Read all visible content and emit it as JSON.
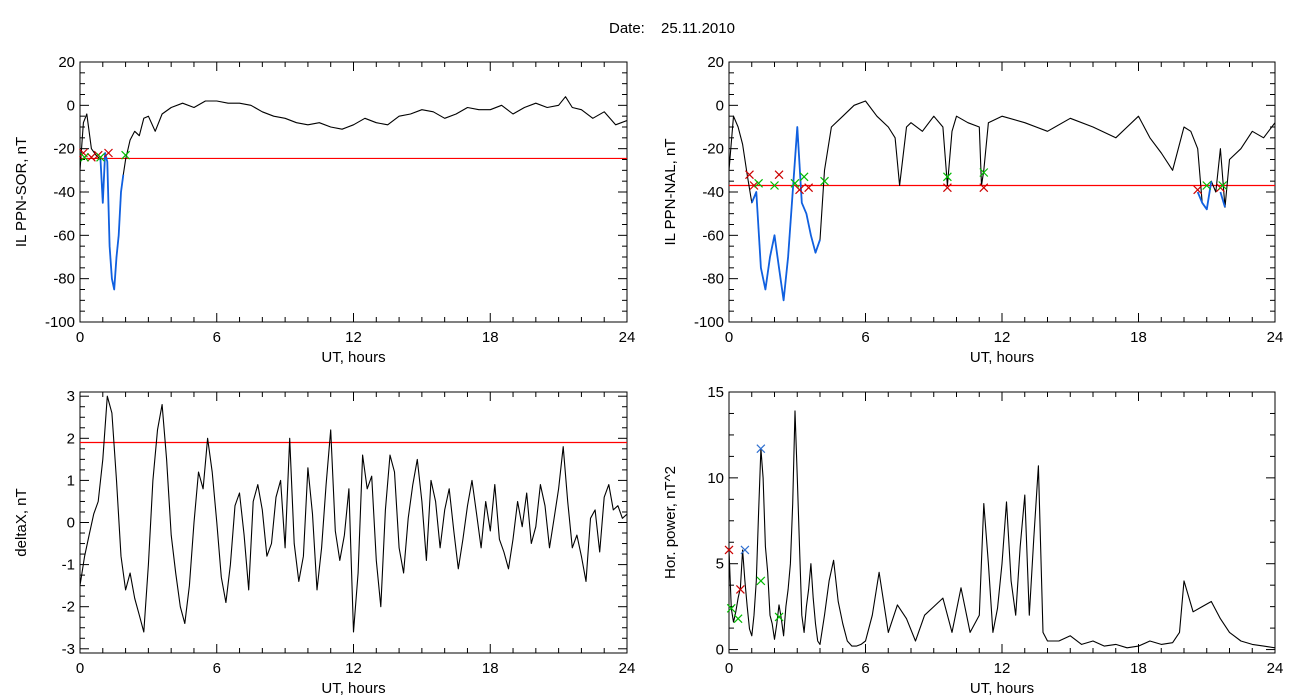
{
  "figure": {
    "date_label": "Date:",
    "date_value": "25.11.2010"
  },
  "chart_data": [
    {
      "type": "line",
      "ylabel": "IL PPN-SOR, nT",
      "xlabel": "UT, hours",
      "xlim": [
        0,
        24
      ],
      "ylim": [
        -100,
        20
      ],
      "xticks": [
        0,
        6,
        12,
        18,
        24
      ],
      "yticks": [
        -100,
        -80,
        -60,
        -40,
        -20,
        0,
        20
      ],
      "threshold": {
        "value": -24.5,
        "color": "#ff0000"
      },
      "series": [
        {
          "role": "signal",
          "color": "#000000",
          "x": [
            0,
            0.15,
            0.3,
            0.5,
            0.7,
            0.9,
            1.0,
            1.1,
            1.2,
            1.3,
            1.4,
            1.5,
            1.6,
            1.7,
            1.8,
            1.9,
            2.0,
            2.2,
            2.4,
            2.6,
            2.8,
            3.0,
            3.3,
            3.6,
            4.0,
            4.5,
            5,
            5.5,
            6,
            6.5,
            7,
            7.5,
            8,
            8.5,
            9,
            9.5,
            10,
            10.5,
            11,
            11.5,
            12,
            12.5,
            13,
            13.5,
            14,
            14.5,
            15,
            15.5,
            16,
            16.5,
            17,
            17.5,
            18,
            18.5,
            19,
            19.5,
            20,
            20.5,
            21,
            21.3,
            21.6,
            22,
            22.5,
            23,
            23.5,
            24
          ],
          "y": [
            -30,
            -8,
            -4,
            -20,
            -23,
            -25,
            -45,
            -22,
            -26,
            -65,
            -80,
            -85,
            -70,
            -60,
            -40,
            -32,
            -25,
            -16,
            -12,
            -14,
            -6,
            -5,
            -12,
            -4,
            -1,
            1,
            -1,
            2,
            2,
            1,
            1,
            0,
            -3,
            -5,
            -6,
            -8,
            -9,
            -8,
            -10,
            -11,
            -9,
            -6,
            -8,
            -9,
            -5,
            -4,
            -2,
            -3,
            -6,
            -4,
            -1,
            -2,
            -2,
            0,
            -4,
            -1,
            1,
            -1,
            0,
            4,
            -1,
            -2,
            -6,
            -3,
            -9,
            -7
          ]
        },
        {
          "role": "event",
          "color": "#1060e0",
          "x": [
            0.9,
            1.0,
            1.1,
            1.2,
            1.3,
            1.4,
            1.5,
            1.6,
            1.7,
            1.8,
            1.9
          ],
          "y": [
            -25,
            -45,
            -22,
            -26,
            -65,
            -80,
            -85,
            -70,
            -60,
            -40,
            -32
          ]
        }
      ],
      "markers": [
        {
          "x": 0.15,
          "y": -22,
          "color": "#cc0000"
        },
        {
          "x": 0.5,
          "y": -24,
          "color": "#cc0000"
        },
        {
          "x": 0.8,
          "y": -23,
          "color": "#cc0000"
        },
        {
          "x": 1.25,
          "y": -22,
          "color": "#cc0000"
        },
        {
          "x": 0.2,
          "y": -24,
          "color": "#00bb00"
        },
        {
          "x": 0.9,
          "y": -24,
          "color": "#00bb00"
        },
        {
          "x": 2.0,
          "y": -23,
          "color": "#00bb00"
        }
      ]
    },
    {
      "type": "line",
      "ylabel": "IL PPN-NAL, nT",
      "xlabel": "UT, hours",
      "xlim": [
        0,
        24
      ],
      "ylim": [
        -100,
        20
      ],
      "xticks": [
        0,
        6,
        12,
        18,
        24
      ],
      "yticks": [
        -100,
        -80,
        -60,
        -40,
        -20,
        0,
        20
      ],
      "threshold": {
        "value": -37,
        "color": "#ff0000"
      },
      "series": [
        {
          "role": "signal",
          "color": "#000000",
          "x": [
            0,
            0.2,
            0.4,
            0.6,
            0.8,
            1.0,
            1.2,
            1.4,
            1.6,
            1.8,
            2.0,
            2.2,
            2.4,
            2.6,
            2.8,
            3.0,
            3.2,
            3.4,
            3.6,
            3.8,
            4.0,
            4.2,
            4.5,
            5.0,
            5.5,
            6,
            6.5,
            7,
            7.3,
            7.5,
            7.8,
            8,
            8.5,
            9,
            9.4,
            9.6,
            9.8,
            10,
            10.5,
            11,
            11.1,
            11.2,
            11.4,
            12,
            13,
            14,
            15,
            16,
            17,
            18,
            18.5,
            19,
            19.5,
            20,
            20.3,
            20.6,
            20.8,
            21,
            21.2,
            21.4,
            21.6,
            21.8,
            22,
            22.5,
            23,
            23.5,
            24
          ],
          "y": [
            -30,
            -5,
            -10,
            -18,
            -32,
            -45,
            -40,
            -75,
            -85,
            -70,
            -60,
            -75,
            -90,
            -70,
            -40,
            -10,
            -45,
            -50,
            -60,
            -68,
            -62,
            -30,
            -10,
            -5,
            0,
            2,
            -5,
            -10,
            -15,
            -37,
            -10,
            -8,
            -12,
            -5,
            -10,
            -37,
            -12,
            -5,
            -8,
            -10,
            -37,
            -30,
            -8,
            -5,
            -8,
            -12,
            -6,
            -10,
            -15,
            -5,
            -15,
            -22,
            -30,
            -10,
            -12,
            -20,
            -45,
            -48,
            -35,
            -40,
            -20,
            -47,
            -25,
            -20,
            -12,
            -15,
            -8
          ]
        },
        {
          "role": "event",
          "color": "#1060e0",
          "x": [
            1.0,
            1.2,
            1.4,
            1.6,
            1.8,
            2.0,
            2.2,
            2.4,
            2.6,
            2.8,
            3.0,
            3.2,
            3.4,
            3.6,
            3.8,
            4.0
          ],
          "y": [
            -45,
            -40,
            -75,
            -85,
            -70,
            -60,
            -75,
            -90,
            -70,
            -40,
            -10,
            -45,
            -50,
            -60,
            -68,
            -62
          ]
        },
        {
          "role": "event",
          "color": "#1060e0",
          "x": [
            20.6,
            20.8,
            21.0,
            21.2
          ],
          "y": [
            -40,
            -45,
            -48,
            -35
          ]
        },
        {
          "role": "event",
          "color": "#1060e0",
          "x": [
            21.6,
            21.8
          ],
          "y": [
            -40,
            -47
          ]
        }
      ],
      "markers": [
        {
          "x": 0.9,
          "y": -32,
          "color": "#cc0000"
        },
        {
          "x": 1.1,
          "y": -37,
          "color": "#cc0000"
        },
        {
          "x": 2.2,
          "y": -32,
          "color": "#cc0000"
        },
        {
          "x": 3.1,
          "y": -39,
          "color": "#cc0000"
        },
        {
          "x": 3.5,
          "y": -38,
          "color": "#cc0000"
        },
        {
          "x": 9.6,
          "y": -38,
          "color": "#cc0000"
        },
        {
          "x": 11.2,
          "y": -38,
          "color": "#cc0000"
        },
        {
          "x": 20.6,
          "y": -39,
          "color": "#cc0000"
        },
        {
          "x": 21.6,
          "y": -38,
          "color": "#cc0000"
        },
        {
          "x": 1.3,
          "y": -36,
          "color": "#00bb00"
        },
        {
          "x": 2.0,
          "y": -37,
          "color": "#00bb00"
        },
        {
          "x": 2.9,
          "y": -36,
          "color": "#00bb00"
        },
        {
          "x": 3.3,
          "y": -33,
          "color": "#00bb00"
        },
        {
          "x": 4.2,
          "y": -35,
          "color": "#00bb00"
        },
        {
          "x": 9.6,
          "y": -33,
          "color": "#00bb00"
        },
        {
          "x": 11.2,
          "y": -31,
          "color": "#00bb00"
        },
        {
          "x": 21.0,
          "y": -37,
          "color": "#00bb00"
        },
        {
          "x": 21.7,
          "y": -37,
          "color": "#00bb00"
        }
      ]
    },
    {
      "type": "line",
      "ylabel": "deltaX, nT",
      "xlabel": "UT, hours",
      "xlim": [
        0,
        24
      ],
      "ylim": [
        -3.1,
        3.1
      ],
      "xticks": [
        0,
        6,
        12,
        18,
        24
      ],
      "yticks": [
        -3,
        -2,
        -1,
        0,
        1,
        2,
        3
      ],
      "threshold": {
        "value": 1.9,
        "color": "#ff0000"
      },
      "series": [
        {
          "role": "signal",
          "color": "#000000",
          "x": [
            0,
            0.2,
            0.4,
            0.6,
            0.8,
            1.0,
            1.2,
            1.4,
            1.6,
            1.8,
            2.0,
            2.2,
            2.4,
            2.6,
            2.8,
            3.0,
            3.2,
            3.4,
            3.6,
            3.8,
            4.0,
            4.2,
            4.4,
            4.6,
            4.8,
            5.0,
            5.2,
            5.4,
            5.6,
            5.8,
            6.0,
            6.2,
            6.4,
            6.6,
            6.8,
            7.0,
            7.2,
            7.4,
            7.6,
            7.8,
            8.0,
            8.2,
            8.4,
            8.6,
            8.8,
            9.0,
            9.2,
            9.4,
            9.6,
            9.8,
            10.0,
            10.2,
            10.4,
            10.6,
            10.8,
            11.0,
            11.2,
            11.4,
            11.6,
            11.8,
            12.0,
            12.2,
            12.4,
            12.6,
            12.8,
            13.0,
            13.2,
            13.4,
            13.6,
            13.8,
            14.0,
            14.2,
            14.4,
            14.6,
            14.8,
            15.0,
            15.2,
            15.4,
            15.6,
            15.8,
            16.0,
            16.2,
            16.4,
            16.6,
            16.8,
            17.0,
            17.2,
            17.4,
            17.6,
            17.8,
            18.0,
            18.2,
            18.4,
            18.6,
            18.8,
            19.0,
            19.2,
            19.4,
            19.6,
            19.8,
            20.0,
            20.2,
            20.4,
            20.6,
            20.8,
            21.0,
            21.2,
            21.4,
            21.6,
            21.8,
            22.0,
            22.2,
            22.4,
            22.6,
            22.8,
            23.0,
            23.2,
            23.4,
            23.6,
            23.8,
            24.0
          ],
          "y": [
            -1.5,
            -0.8,
            -0.3,
            0.2,
            0.5,
            1.5,
            3.0,
            2.6,
            1.0,
            -0.8,
            -1.6,
            -1.2,
            -1.8,
            -2.2,
            -2.6,
            -1.0,
            1.0,
            2.2,
            2.8,
            1.5,
            -0.3,
            -1.2,
            -2.0,
            -2.4,
            -1.5,
            0.0,
            1.2,
            0.8,
            2.0,
            1.2,
            0.0,
            -1.3,
            -1.9,
            -1.0,
            0.4,
            0.7,
            -0.3,
            -1.6,
            0.5,
            0.9,
            0.3,
            -0.8,
            -0.5,
            0.6,
            1.0,
            -0.6,
            2.0,
            -0.5,
            -1.4,
            -0.8,
            1.3,
            0.2,
            -1.6,
            -0.6,
            0.9,
            2.2,
            -0.2,
            -0.9,
            -0.3,
            0.8,
            -2.6,
            -1.2,
            1.6,
            0.8,
            1.1,
            -0.9,
            -2.0,
            0.3,
            1.6,
            1.2,
            -0.6,
            -1.2,
            0.1,
            0.9,
            1.5,
            0.5,
            -0.9,
            1.0,
            0.5,
            -0.6,
            0.3,
            0.8,
            -0.2,
            -1.1,
            -0.4,
            0.4,
            1.0,
            0.2,
            -0.6,
            0.5,
            -0.2,
            0.9,
            -0.4,
            -0.7,
            -1.1,
            -0.4,
            0.5,
            -0.1,
            0.7,
            -0.5,
            -0.1,
            0.9,
            0.4,
            -0.6,
            0.1,
            0.8,
            1.8,
            0.5,
            -0.6,
            -0.3,
            -0.8,
            -1.4,
            0.1,
            0.3,
            -0.7,
            0.6,
            0.9,
            0.3,
            0.4,
            0.1,
            0.2
          ]
        }
      ],
      "markers": []
    },
    {
      "type": "line",
      "ylabel": "Hor. power, nT^2",
      "xlabel": "UT, hours",
      "xlim": [
        0,
        24
      ],
      "ylim": [
        -0.2,
        15
      ],
      "xticks": [
        0,
        6,
        12,
        18,
        24
      ],
      "yticks": [
        0,
        5,
        10,
        15
      ],
      "series": [
        {
          "role": "signal",
          "color": "#000000",
          "x": [
            0,
            0.1,
            0.2,
            0.3,
            0.4,
            0.5,
            0.6,
            0.7,
            0.8,
            0.9,
            1.0,
            1.1,
            1.2,
            1.3,
            1.4,
            1.5,
            1.6,
            1.7,
            1.8,
            1.9,
            2.0,
            2.1,
            2.2,
            2.3,
            2.4,
            2.5,
            2.6,
            2.7,
            2.8,
            2.9,
            3.0,
            3.1,
            3.2,
            3.3,
            3.4,
            3.5,
            3.6,
            3.7,
            3.8,
            3.9,
            4.0,
            4.2,
            4.4,
            4.6,
            4.8,
            5.0,
            5.2,
            5.4,
            5.6,
            5.8,
            6.0,
            6.3,
            6.6,
            7.0,
            7.4,
            7.8,
            8.2,
            8.6,
            9.0,
            9.4,
            9.8,
            10.2,
            10.6,
            11.0,
            11.2,
            11.4,
            11.6,
            11.8,
            12.0,
            12.2,
            12.4,
            12.6,
            12.8,
            13.0,
            13.2,
            13.4,
            13.6,
            13.8,
            14.0,
            14.5,
            15,
            15.5,
            16,
            16.5,
            17,
            17.5,
            18,
            18.5,
            19,
            19.5,
            19.8,
            20.0,
            20.4,
            20.8,
            21.2,
            21.6,
            22,
            22.5,
            23,
            23.5,
            24
          ],
          "y": [
            5.8,
            2.4,
            1.6,
            2.2,
            3.0,
            3.6,
            5.8,
            4.0,
            2.5,
            1.2,
            0.8,
            2.0,
            4.0,
            8.0,
            11.7,
            10.0,
            6.0,
            4.5,
            2.0,
            1.5,
            0.6,
            1.5,
            2.6,
            1.8,
            0.8,
            2.5,
            3.5,
            5.0,
            8.5,
            13.9,
            10.0,
            6.0,
            2.0,
            1.0,
            2.5,
            3.5,
            5.0,
            3.0,
            1.5,
            0.5,
            0.3,
            2.0,
            4.0,
            5.2,
            2.8,
            1.5,
            0.5,
            0.2,
            0.2,
            0.3,
            0.5,
            2.0,
            4.5,
            1.0,
            2.6,
            1.8,
            0.5,
            2.0,
            2.5,
            3.0,
            1.0,
            3.6,
            1.0,
            2.0,
            8.5,
            5.0,
            1.0,
            2.4,
            5.0,
            8.6,
            4.0,
            2.0,
            6.0,
            9.0,
            2.0,
            6.5,
            10.7,
            1.0,
            0.5,
            0.5,
            0.8,
            0.3,
            0.5,
            0.2,
            0.3,
            0.1,
            0.2,
            0.5,
            0.3,
            0.4,
            1.0,
            4.0,
            2.2,
            2.5,
            2.8,
            1.8,
            1.0,
            0.5,
            0.3,
            0.2,
            0.1
          ]
        }
      ],
      "markers": [
        {
          "x": 0.0,
          "y": 5.8,
          "color": "#cc0000"
        },
        {
          "x": 0.5,
          "y": 3.5,
          "color": "#cc0000"
        },
        {
          "x": 0.7,
          "y": 5.8,
          "color": "#3070d0"
        },
        {
          "x": 1.4,
          "y": 11.7,
          "color": "#3070d0"
        },
        {
          "x": 0.1,
          "y": 2.4,
          "color": "#00bb00"
        },
        {
          "x": 0.4,
          "y": 1.8,
          "color": "#00bb00"
        },
        {
          "x": 1.4,
          "y": 4.0,
          "color": "#00bb00"
        },
        {
          "x": 2.2,
          "y": 1.9,
          "color": "#00bb00"
        }
      ]
    }
  ]
}
